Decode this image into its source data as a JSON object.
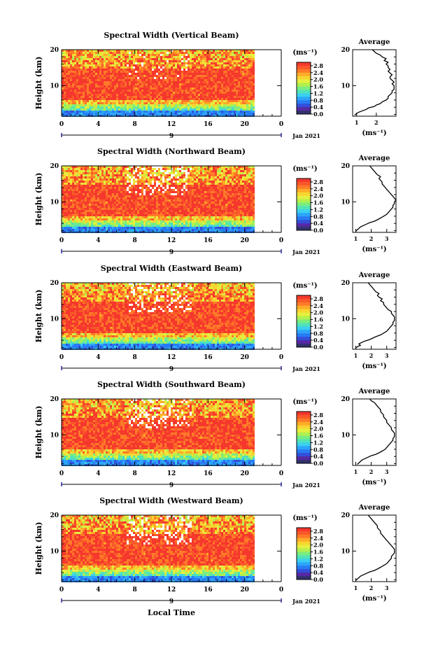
{
  "figure": {
    "xlabel": "Local Time",
    "date_label": "Jan 2021",
    "day_label": "9",
    "ylabel": "Height (km)",
    "colorbar_unit": "(ms⁻¹)",
    "avg_title": "Average",
    "avg_xlabel": "(ms⁻¹)"
  },
  "chart_data": [
    {
      "type": "heatmap",
      "title": "Spectral Width (Vertical Beam)",
      "x_ticks": [
        "0",
        "4",
        "8",
        "12",
        "16",
        "20",
        "0"
      ],
      "y_ticks": [
        "20",
        "10"
      ],
      "xlim": [
        0,
        24
      ],
      "ylim": [
        1.5,
        20
      ],
      "data_end_hour": 21,
      "colorbar_ticks": [
        "2.8",
        "2.4",
        "2.0",
        "1.6",
        "1.2",
        "0.8",
        "0.4",
        "0.0"
      ],
      "colorbar_range": [
        0,
        3.0
      ],
      "profile_xlim": [
        0.8,
        3.0
      ],
      "profile_xticks": [
        "1",
        "2"
      ],
      "profile": [
        [
          1.8,
          0.9
        ],
        [
          2.2,
          1.0
        ],
        [
          2.6,
          1.1
        ],
        [
          3.0,
          1.3
        ],
        [
          3.4,
          1.5
        ],
        [
          3.8,
          1.6
        ],
        [
          4.2,
          1.9
        ],
        [
          4.6,
          2.0
        ],
        [
          5.0,
          2.2
        ],
        [
          5.5,
          2.3
        ],
        [
          6.0,
          2.5
        ],
        [
          6.5,
          2.6
        ],
        [
          7.0,
          2.6
        ],
        [
          7.5,
          2.7
        ],
        [
          8.0,
          2.8
        ],
        [
          8.5,
          2.8
        ],
        [
          9.0,
          2.9
        ],
        [
          9.5,
          2.9
        ],
        [
          10.0,
          2.9
        ],
        [
          10.5,
          2.8
        ],
        [
          11.0,
          2.9
        ],
        [
          11.5,
          2.8
        ],
        [
          12.0,
          2.7
        ],
        [
          12.5,
          2.7
        ],
        [
          13.0,
          2.8
        ],
        [
          13.5,
          2.7
        ],
        [
          14.0,
          2.6
        ],
        [
          14.5,
          2.7
        ],
        [
          15.0,
          2.6
        ],
        [
          15.5,
          2.6
        ],
        [
          16.0,
          2.5
        ],
        [
          16.5,
          2.6
        ],
        [
          17.0,
          2.4
        ],
        [
          17.5,
          2.5
        ],
        [
          18.0,
          2.3
        ],
        [
          18.5,
          2.2
        ],
        [
          19.0,
          2.0
        ],
        [
          19.5,
          1.9
        ],
        [
          20.0,
          1.8
        ]
      ]
    },
    {
      "type": "heatmap",
      "title": "Spectral Width (Northward Beam)",
      "x_ticks": [
        "0",
        "4",
        "8",
        "12",
        "16",
        "20",
        "0"
      ],
      "y_ticks": [
        "20",
        "10"
      ],
      "xlim": [
        0,
        24
      ],
      "ylim": [
        1.5,
        20
      ],
      "data_end_hour": 21,
      "colorbar_ticks": [
        "2.8",
        "2.4",
        "2.0",
        "1.6",
        "1.2",
        "0.8",
        "0.4",
        "0.0"
      ],
      "colorbar_range": [
        0,
        3.0
      ],
      "profile_xlim": [
        0.8,
        3.6
      ],
      "profile_xticks": [
        "1",
        "2",
        "3"
      ],
      "profile": [
        [
          1.8,
          1.0
        ],
        [
          2.2,
          1.1
        ],
        [
          2.6,
          1.2
        ],
        [
          3.0,
          1.3
        ],
        [
          3.4,
          1.5
        ],
        [
          3.8,
          1.7
        ],
        [
          4.2,
          1.9
        ],
        [
          4.6,
          2.2
        ],
        [
          5.0,
          2.4
        ],
        [
          5.5,
          2.6
        ],
        [
          6.0,
          2.8
        ],
        [
          6.5,
          3.0
        ],
        [
          7.0,
          3.1
        ],
        [
          7.5,
          3.2
        ],
        [
          8.0,
          3.3
        ],
        [
          8.5,
          3.4
        ],
        [
          9.0,
          3.4
        ],
        [
          9.5,
          3.5
        ],
        [
          10.0,
          3.5
        ],
        [
          10.5,
          3.6
        ],
        [
          11.0,
          3.5
        ],
        [
          11.5,
          3.4
        ],
        [
          12.0,
          3.3
        ],
        [
          12.5,
          3.2
        ],
        [
          13.0,
          3.1
        ],
        [
          13.5,
          3.0
        ],
        [
          14.0,
          2.9
        ],
        [
          14.5,
          2.8
        ],
        [
          15.0,
          2.7
        ],
        [
          15.5,
          2.7
        ],
        [
          16.0,
          2.6
        ],
        [
          16.5,
          2.5
        ],
        [
          17.0,
          2.6
        ],
        [
          17.5,
          2.4
        ],
        [
          18.0,
          2.3
        ],
        [
          18.5,
          2.2
        ],
        [
          19.0,
          2.1
        ],
        [
          19.5,
          2.0
        ],
        [
          20.0,
          1.9
        ]
      ]
    },
    {
      "type": "heatmap",
      "title": "Spectral Width (Eastward Beam)",
      "x_ticks": [
        "0",
        "4",
        "8",
        "12",
        "16",
        "20",
        "0"
      ],
      "y_ticks": [
        "20",
        "10"
      ],
      "xlim": [
        0,
        24
      ],
      "ylim": [
        1.5,
        20
      ],
      "data_end_hour": 21,
      "colorbar_ticks": [
        "2.8",
        "2.4",
        "2.0",
        "1.6",
        "1.2",
        "0.8",
        "0.4",
        "0.0"
      ],
      "colorbar_range": [
        0,
        3.0
      ],
      "profile_xlim": [
        0.8,
        3.6
      ],
      "profile_xticks": [
        "1",
        "2",
        "3"
      ],
      "profile": [
        [
          1.8,
          1.0
        ],
        [
          2.2,
          1.1
        ],
        [
          2.6,
          1.3
        ],
        [
          3.0,
          1.2
        ],
        [
          3.4,
          1.4
        ],
        [
          3.8,
          1.6
        ],
        [
          4.2,
          1.9
        ],
        [
          4.6,
          2.1
        ],
        [
          5.0,
          2.3
        ],
        [
          5.5,
          2.6
        ],
        [
          6.0,
          2.8
        ],
        [
          6.5,
          3.0
        ],
        [
          7.0,
          3.1
        ],
        [
          7.5,
          3.2
        ],
        [
          8.0,
          3.3
        ],
        [
          8.5,
          3.4
        ],
        [
          9.0,
          3.4
        ],
        [
          9.5,
          3.5
        ],
        [
          10.0,
          3.5
        ],
        [
          10.5,
          3.5
        ],
        [
          11.0,
          3.4
        ],
        [
          11.5,
          3.3
        ],
        [
          12.0,
          3.3
        ],
        [
          12.5,
          3.1
        ],
        [
          13.0,
          3.0
        ],
        [
          13.5,
          2.9
        ],
        [
          14.0,
          2.8
        ],
        [
          14.5,
          2.8
        ],
        [
          15.0,
          2.6
        ],
        [
          15.5,
          2.7
        ],
        [
          16.0,
          2.5
        ],
        [
          16.5,
          2.4
        ],
        [
          17.0,
          2.5
        ],
        [
          17.5,
          2.3
        ],
        [
          18.0,
          2.2
        ],
        [
          18.5,
          2.1
        ],
        [
          19.0,
          2.0
        ],
        [
          19.5,
          1.9
        ],
        [
          20.0,
          1.8
        ]
      ]
    },
    {
      "type": "heatmap",
      "title": "Spectral Width (Southward Beam)",
      "x_ticks": [
        "0",
        "4",
        "8",
        "12",
        "16",
        "20",
        "0"
      ],
      "y_ticks": [
        "20",
        "10"
      ],
      "xlim": [
        0,
        24
      ],
      "ylim": [
        1.5,
        20
      ],
      "data_end_hour": 21,
      "colorbar_ticks": [
        "2.8",
        "2.4",
        "2.0",
        "1.6",
        "1.2",
        "0.8",
        "0.4",
        "0.0"
      ],
      "colorbar_range": [
        0,
        3.0
      ],
      "profile_xlim": [
        0.8,
        3.6
      ],
      "profile_xticks": [
        "1",
        "2",
        "3"
      ],
      "profile": [
        [
          1.8,
          1.1
        ],
        [
          2.2,
          1.2
        ],
        [
          2.6,
          1.3
        ],
        [
          3.0,
          1.4
        ],
        [
          3.4,
          1.6
        ],
        [
          3.8,
          1.8
        ],
        [
          4.2,
          2.0
        ],
        [
          4.6,
          2.3
        ],
        [
          5.0,
          2.5
        ],
        [
          5.5,
          2.7
        ],
        [
          6.0,
          2.9
        ],
        [
          6.5,
          3.0
        ],
        [
          7.0,
          3.1
        ],
        [
          7.5,
          3.2
        ],
        [
          8.0,
          3.3
        ],
        [
          8.5,
          3.4
        ],
        [
          9.0,
          3.4
        ],
        [
          9.5,
          3.5
        ],
        [
          10.0,
          3.5
        ],
        [
          10.5,
          3.5
        ],
        [
          11.0,
          3.4
        ],
        [
          11.5,
          3.3
        ],
        [
          12.0,
          3.3
        ],
        [
          12.5,
          3.2
        ],
        [
          13.0,
          3.1
        ],
        [
          13.5,
          3.0
        ],
        [
          14.0,
          3.0
        ],
        [
          14.5,
          2.9
        ],
        [
          15.0,
          2.8
        ],
        [
          15.5,
          2.8
        ],
        [
          16.0,
          2.7
        ],
        [
          16.5,
          2.6
        ],
        [
          17.0,
          2.6
        ],
        [
          17.5,
          2.5
        ],
        [
          18.0,
          2.4
        ],
        [
          18.5,
          2.3
        ],
        [
          19.0,
          2.2
        ],
        [
          19.5,
          2.0
        ],
        [
          20.0,
          1.9
        ]
      ]
    },
    {
      "type": "heatmap",
      "title": "Spectral Width (Westward Beam)",
      "x_ticks": [
        "0",
        "4",
        "8",
        "12",
        "16",
        "20",
        "0"
      ],
      "y_ticks": [
        "20",
        "10"
      ],
      "xlim": [
        0,
        24
      ],
      "ylim": [
        1.5,
        20
      ],
      "data_end_hour": 21,
      "colorbar_ticks": [
        "2.8",
        "2.4",
        "2.0",
        "1.6",
        "1.2",
        "0.8",
        "0.4",
        "0.0"
      ],
      "colorbar_range": [
        0,
        3.0
      ],
      "profile_xlim": [
        0.8,
        3.6
      ],
      "profile_xticks": [
        "1",
        "2",
        "3"
      ],
      "profile": [
        [
          1.8,
          1.0
        ],
        [
          2.2,
          1.1
        ],
        [
          2.6,
          1.2
        ],
        [
          3.0,
          1.3
        ],
        [
          3.4,
          1.5
        ],
        [
          3.8,
          1.7
        ],
        [
          4.2,
          1.9
        ],
        [
          4.6,
          2.2
        ],
        [
          5.0,
          2.4
        ],
        [
          5.5,
          2.6
        ],
        [
          6.0,
          2.8
        ],
        [
          6.5,
          3.0
        ],
        [
          7.0,
          3.1
        ],
        [
          7.5,
          3.2
        ],
        [
          8.0,
          3.3
        ],
        [
          8.5,
          3.3
        ],
        [
          9.0,
          3.4
        ],
        [
          9.5,
          3.5
        ],
        [
          10.0,
          3.5
        ],
        [
          10.5,
          3.5
        ],
        [
          11.0,
          3.4
        ],
        [
          11.5,
          3.3
        ],
        [
          12.0,
          3.2
        ],
        [
          12.5,
          3.1
        ],
        [
          13.0,
          3.0
        ],
        [
          13.5,
          2.9
        ],
        [
          14.0,
          2.8
        ],
        [
          14.5,
          2.7
        ],
        [
          15.0,
          2.6
        ],
        [
          15.5,
          2.6
        ],
        [
          16.0,
          2.5
        ],
        [
          16.5,
          2.4
        ],
        [
          17.0,
          2.4
        ],
        [
          17.5,
          2.3
        ],
        [
          18.0,
          2.2
        ],
        [
          18.5,
          2.1
        ],
        [
          19.0,
          2.0
        ],
        [
          19.5,
          1.9
        ],
        [
          20.0,
          1.8
        ]
      ]
    }
  ]
}
